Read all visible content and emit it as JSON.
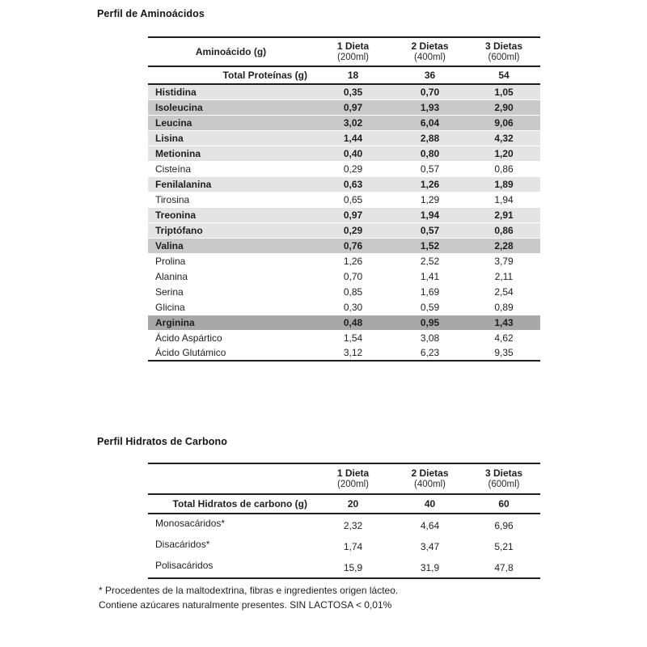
{
  "colors": {
    "shade_light": "#e4e4e4",
    "shade_medium": "#c9c9c9",
    "shade_dark": "#a8a8a8",
    "border": "#1c1c1c",
    "text": "#1f1f1f",
    "background": "#ffffff"
  },
  "tables": [
    {
      "title": "Perfil de Aminoácidos",
      "header": {
        "label_col": "Aminoácido (g)",
        "columns": [
          {
            "line1": "1 Dieta",
            "line2": "(200ml)"
          },
          {
            "line1": "2 Dietas",
            "line2": "(400ml)"
          },
          {
            "line1": "3 Dietas",
            "line2": "(600ml)"
          }
        ]
      },
      "total_row": {
        "label": "Total Proteínas (g)",
        "values": [
          "18",
          "36",
          "54"
        ]
      },
      "rows": [
        {
          "label": "Histidina",
          "values": [
            "0,35",
            "0,70",
            "1,05"
          ],
          "shade": "light",
          "bold": true
        },
        {
          "label": "Isoleucina",
          "values": [
            "0,97",
            "1,93",
            "2,90"
          ],
          "shade": "medium",
          "bold": true
        },
        {
          "label": "Leucina",
          "values": [
            "3,02",
            "6,04",
            "9,06"
          ],
          "shade": "medium",
          "bold": true
        },
        {
          "label": "Lisina",
          "values": [
            "1,44",
            "2,88",
            "4,32"
          ],
          "shade": "light",
          "bold": true
        },
        {
          "label": "Metionina",
          "values": [
            "0,40",
            "0,80",
            "1,20"
          ],
          "shade": "light",
          "bold": true
        },
        {
          "label": "Cisteína",
          "values": [
            "0,29",
            "0,57",
            "0,86"
          ],
          "shade": "none",
          "bold": false
        },
        {
          "label": "Fenilalanina",
          "values": [
            "0,63",
            "1,26",
            "1,89"
          ],
          "shade": "light",
          "bold": true
        },
        {
          "label": "Tirosina",
          "values": [
            "0,65",
            "1,29",
            "1,94"
          ],
          "shade": "none",
          "bold": false
        },
        {
          "label": "Treonina",
          "values": [
            "0,97",
            "1,94",
            "2,91"
          ],
          "shade": "light",
          "bold": true
        },
        {
          "label": "Triptófano",
          "values": [
            "0,29",
            "0,57",
            "0,86"
          ],
          "shade": "light",
          "bold": true
        },
        {
          "label": "Valina",
          "values": [
            "0,76",
            "1,52",
            "2,28"
          ],
          "shade": "medium",
          "bold": true
        },
        {
          "label": "Prolina",
          "values": [
            "1,26",
            "2,52",
            "3,79"
          ],
          "shade": "none",
          "bold": false
        },
        {
          "label": "Alanina",
          "values": [
            "0,70",
            "1,41",
            "2,11"
          ],
          "shade": "none",
          "bold": false
        },
        {
          "label": "Serina",
          "values": [
            "0,85",
            "1,69",
            "2,54"
          ],
          "shade": "none",
          "bold": false
        },
        {
          "label": "Glicina",
          "values": [
            "0,30",
            "0,59",
            "0,89"
          ],
          "shade": "none",
          "bold": false
        },
        {
          "label": "Arginina",
          "values": [
            "0,48",
            "0,95",
            "1,43"
          ],
          "shade": "dark",
          "bold": true
        },
        {
          "label": "Ácido Aspártico",
          "values": [
            "1,54",
            "3,08",
            "4,62"
          ],
          "shade": "none",
          "bold": false
        },
        {
          "label": "Ácido Glutámico",
          "values": [
            "3,12",
            "6,23",
            "9,35"
          ],
          "shade": "none",
          "bold": false
        }
      ]
    },
    {
      "title": "Perfil Hidratos de Carbono",
      "header": {
        "label_col": "",
        "columns": [
          {
            "line1": "1 Dieta",
            "line2": "(200ml)"
          },
          {
            "line1": "2 Dietas",
            "line2": "(400ml)"
          },
          {
            "line1": "3 Dietas",
            "line2": "(600ml)"
          }
        ]
      },
      "total_row": {
        "label": "Total Hidratos de carbono (g)",
        "values": [
          "20",
          "40",
          "60"
        ]
      },
      "rows": [
        {
          "label": "Monosacáridos*",
          "values": [
            "2,32",
            "4,64",
            "6,96"
          ],
          "shade": "none",
          "bold": false
        },
        {
          "label": "Disacáridos*",
          "values": [
            "1,74",
            "3,47",
            "5,21"
          ],
          "shade": "none",
          "bold": false
        },
        {
          "label": "Polisacáridos",
          "values": [
            "15,9",
            "31,9",
            "47,8"
          ],
          "shade": "none",
          "bold": false
        }
      ]
    }
  ],
  "footnotes": [
    "* Procedentes de la maltodextrina, fibras e ingredientes origen lácteo.",
    "Contiene azúcares naturalmente presentes. SIN LACTOSA < 0,01%"
  ]
}
